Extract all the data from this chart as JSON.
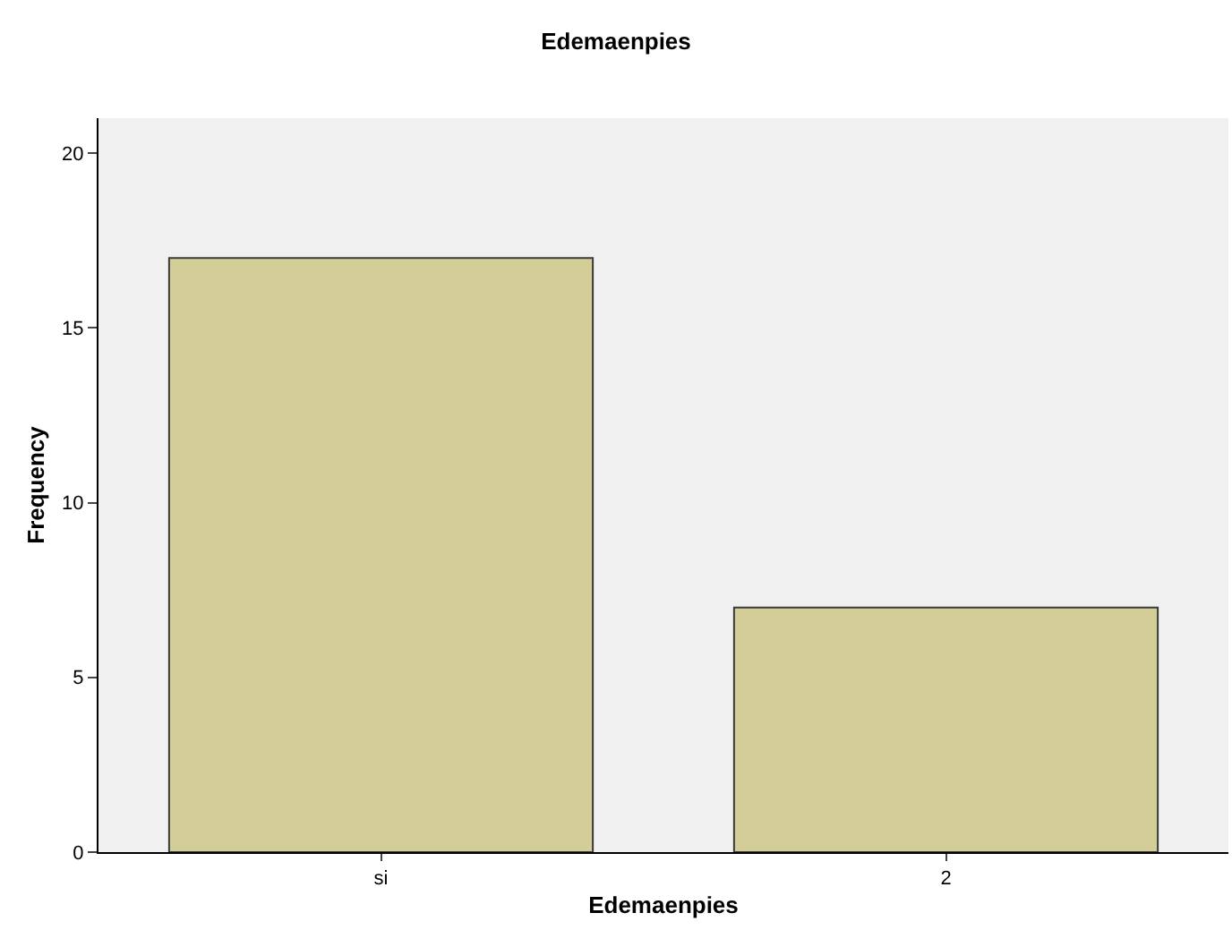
{
  "chart_data": {
    "type": "bar",
    "title": "Edemaenpies",
    "xlabel": "Edemaenpies",
    "ylabel": "Frequency",
    "categories": [
      "si",
      "2"
    ],
    "values": [
      17,
      7
    ],
    "color": "#d3ce97",
    "ylim": [
      0,
      21
    ],
    "yticks": [
      0,
      5,
      10,
      15,
      20
    ],
    "grid": false,
    "legend": false
  }
}
